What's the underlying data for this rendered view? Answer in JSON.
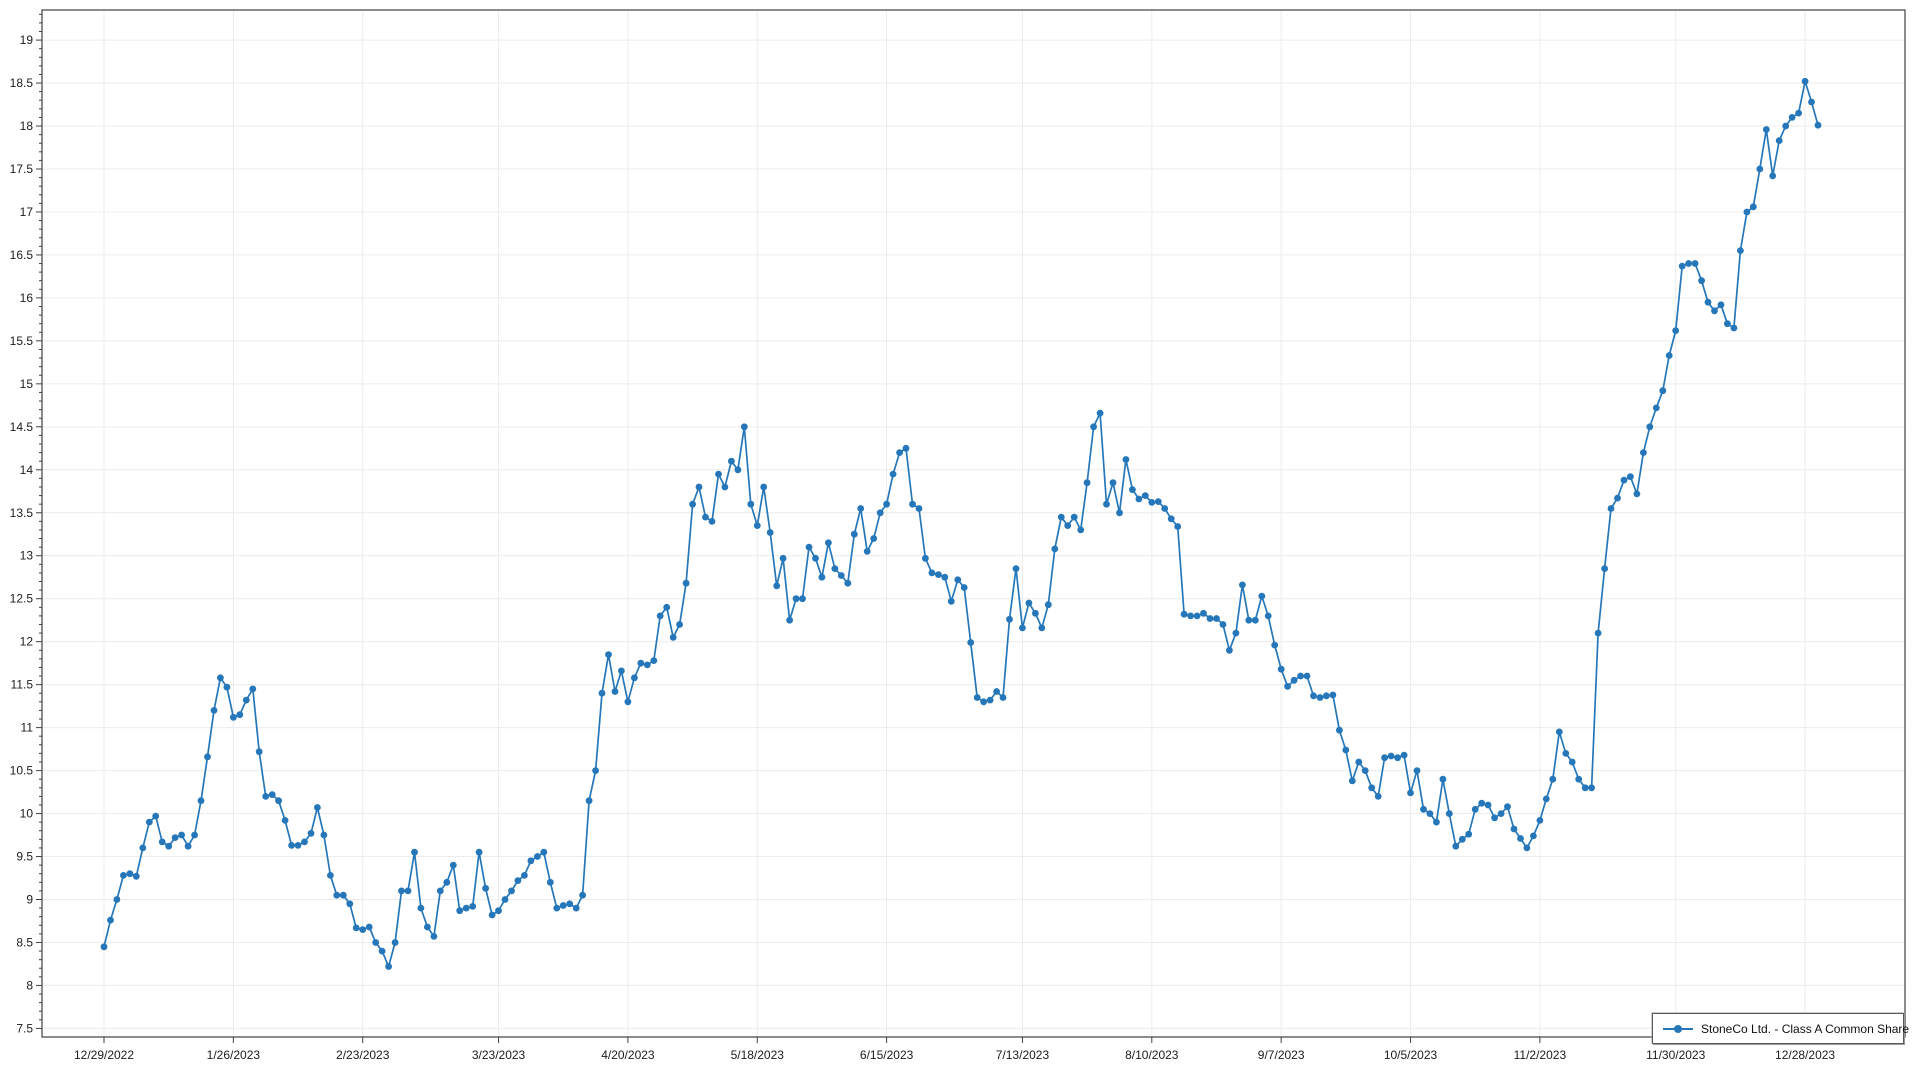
{
  "legend": {
    "label": "StoneCo Ltd. - Class A Common Share"
  },
  "colors": {
    "line": "#2577b9",
    "marker": "#2577b9",
    "grid": "#ececec",
    "axis": "#404040",
    "tick": "#404040",
    "label": "#1c1c1c",
    "background": "#ffffff",
    "legend_border": "#5a5a5a"
  },
  "chart_data": {
    "type": "line",
    "title": "",
    "xlabel": "",
    "ylabel": "",
    "grid": true,
    "legend_position": "bottom-right",
    "y_axis": {
      "min": 7.4,
      "max": 19.35,
      "tick_start": 7.5,
      "tick_end": 19.0,
      "tick_step": 0.5,
      "minor_tick_step": 0.1
    },
    "x_axis": {
      "tick_labels": [
        "12/29/2022",
        "1/26/2023",
        "2/23/2023",
        "3/23/2023",
        "4/20/2023",
        "5/18/2023",
        "6/15/2023",
        "7/13/2023",
        "8/10/2023",
        "9/7/2023",
        "10/5/2023",
        "11/2/2023",
        "11/30/2023",
        "12/28/2023"
      ],
      "tick_indices": [
        0,
        20,
        40,
        61,
        81,
        101,
        121,
        142,
        162,
        182,
        202,
        222,
        243,
        263
      ]
    },
    "series": [
      {
        "name": "StoneCo Ltd. - Class A Common Share",
        "color": "#2577b9",
        "marker": "circle",
        "values": [
          8.45,
          8.76,
          9.0,
          9.28,
          9.3,
          9.27,
          9.6,
          9.9,
          9.97,
          9.67,
          9.62,
          9.72,
          9.75,
          9.62,
          9.75,
          10.15,
          10.66,
          11.2,
          11.58,
          11.47,
          11.12,
          11.15,
          11.32,
          11.45,
          10.72,
          10.2,
          10.22,
          10.15,
          9.92,
          9.63,
          9.63,
          9.67,
          9.77,
          10.07,
          9.75,
          9.28,
          9.05,
          9.05,
          8.95,
          8.67,
          8.65,
          8.68,
          8.5,
          8.4,
          8.22,
          8.5,
          9.1,
          9.1,
          9.55,
          8.9,
          8.68,
          8.57,
          9.1,
          9.2,
          9.4,
          8.87,
          8.9,
          8.92,
          9.55,
          9.13,
          8.82,
          8.87,
          9.0,
          9.1,
          9.22,
          9.28,
          9.45,
          9.5,
          9.55,
          9.2,
          8.9,
          8.93,
          8.95,
          8.9,
          9.05,
          10.15,
          10.5,
          11.4,
          11.85,
          11.42,
          11.66,
          11.3,
          11.58,
          11.75,
          11.73,
          11.78,
          12.3,
          12.4,
          12.05,
          12.2,
          12.68,
          13.6,
          13.8,
          13.45,
          13.4,
          13.95,
          13.8,
          14.1,
          14.0,
          14.5,
          13.6,
          13.35,
          13.8,
          13.27,
          12.65,
          12.97,
          12.25,
          12.5,
          12.5,
          13.1,
          12.97,
          12.75,
          13.15,
          12.85,
          12.77,
          12.68,
          13.25,
          13.55,
          13.05,
          13.2,
          13.5,
          13.6,
          13.95,
          14.2,
          14.25,
          13.6,
          13.55,
          12.97,
          12.8,
          12.78,
          12.75,
          12.47,
          12.72,
          12.63,
          11.99,
          11.35,
          11.3,
          11.32,
          11.42,
          11.35,
          12.26,
          12.85,
          12.16,
          12.45,
          12.33,
          12.16,
          12.43,
          13.08,
          13.45,
          13.35,
          13.45,
          13.3,
          13.85,
          14.5,
          14.66,
          13.6,
          13.85,
          13.5,
          14.12,
          13.77,
          13.66,
          13.7,
          13.62,
          13.63,
          13.55,
          13.43,
          13.34,
          12.32,
          12.3,
          12.3,
          12.33,
          12.27,
          12.27,
          12.2,
          11.9,
          12.1,
          12.66,
          12.25,
          12.25,
          12.53,
          12.3,
          11.96,
          11.68,
          11.48,
          11.55,
          11.6,
          11.6,
          11.37,
          11.35,
          11.37,
          11.38,
          10.97,
          10.74,
          10.38,
          10.6,
          10.5,
          10.3,
          10.2,
          10.65,
          10.67,
          10.65,
          10.68,
          10.24,
          10.5,
          10.05,
          10.0,
          9.9,
          10.4,
          10.0,
          9.62,
          9.7,
          9.76,
          10.05,
          10.12,
          10.1,
          9.95,
          10.0,
          10.08,
          9.82,
          9.71,
          9.6,
          9.74,
          9.92,
          10.17,
          10.4,
          10.95,
          10.7,
          10.6,
          10.4,
          10.3,
          10.3,
          12.1,
          12.85,
          13.55,
          13.67,
          13.88,
          13.92,
          13.72,
          14.2,
          14.5,
          14.72,
          14.92,
          15.33,
          15.62,
          16.37,
          16.4,
          16.4,
          16.2,
          15.95,
          15.85,
          15.92,
          15.7,
          15.65,
          16.55,
          17.0,
          17.06,
          17.5,
          17.96,
          17.42,
          17.83,
          18.0,
          18.1,
          18.15,
          18.52,
          18.28,
          18.01
        ]
      }
    ]
  }
}
